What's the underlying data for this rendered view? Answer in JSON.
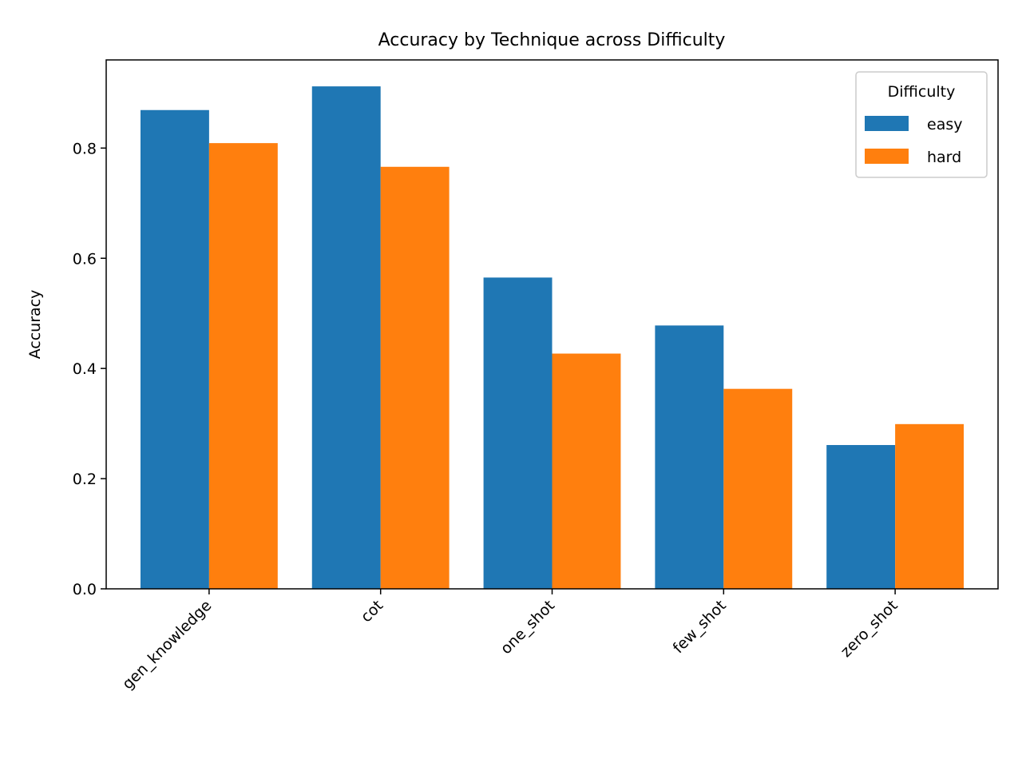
{
  "chart_data": {
    "type": "bar",
    "title": "Accuracy by Technique across Difficulty",
    "xlabel": "",
    "ylabel": "Accuracy",
    "categories": [
      "gen_knowledge",
      "cot",
      "one_shot",
      "few_shot",
      "zero_shot"
    ],
    "series": [
      {
        "name": "easy",
        "color": "#1f77b4",
        "values": [
          0.869,
          0.912,
          0.565,
          0.478,
          0.261
        ]
      },
      {
        "name": "hard",
        "color": "#ff7f0e",
        "values": [
          0.809,
          0.766,
          0.427,
          0.363,
          0.299
        ]
      }
    ],
    "ylim": [
      0,
      0.96
    ],
    "yticks": [
      "0.0",
      "0.2",
      "0.4",
      "0.6",
      "0.8"
    ],
    "grid": false,
    "legend": {
      "title": "Difficulty",
      "placement": "top-right"
    }
  }
}
